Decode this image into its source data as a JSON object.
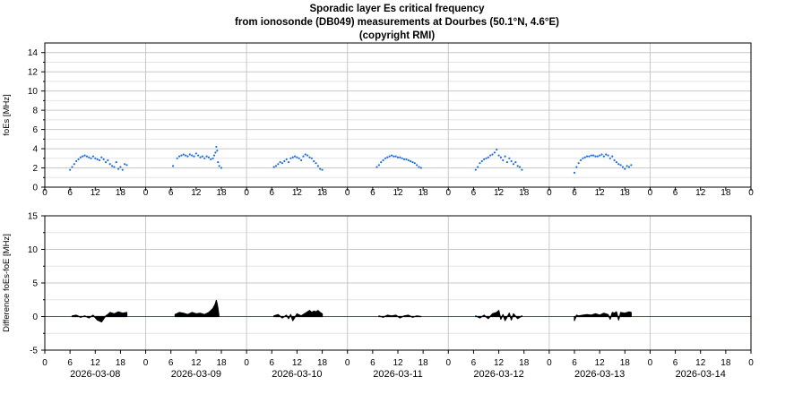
{
  "title_lines": [
    "Sporadic layer Es critical frequency",
    "from ionosonde (DB049) measurements at Dourbes (50.1°N, 4.6°E)",
    "(copyright RMI)"
  ],
  "chart_data": [
    {
      "type": "scatter",
      "ylabel": "foEs [MHz]",
      "ylim": [
        0,
        15
      ],
      "yticks": [
        0,
        2,
        4,
        6,
        8,
        10,
        12,
        14
      ],
      "grid": true,
      "color": "#1f6fdc",
      "days": [
        "2026-03-08",
        "2026-03-09",
        "2026-03-10",
        "2026-03-11",
        "2026-03-12",
        "2026-03-13",
        "2026-03-14"
      ],
      "xtick_hours": [
        0,
        6,
        12,
        18
      ],
      "series": [
        {
          "day": "2026-03-08",
          "hours": [
            6.0,
            6.5,
            7.0,
            7.5,
            8.0,
            8.5,
            9.0,
            9.5,
            10.0,
            10.5,
            11.0,
            11.5,
            12.0,
            12.5,
            13.0,
            13.5,
            14.0,
            14.5,
            15.0,
            15.5,
            16.0,
            16.5,
            17.0,
            17.5,
            18.0,
            18.5,
            19.0,
            19.5
          ],
          "values": [
            1.8,
            2.1,
            2.4,
            2.7,
            2.9,
            3.1,
            3.2,
            3.3,
            3.2,
            3.1,
            3.0,
            3.2,
            3.0,
            2.9,
            2.8,
            3.1,
            2.9,
            2.6,
            2.8,
            2.4,
            2.2,
            2.1,
            2.6,
            1.9,
            2.1,
            1.8,
            2.4,
            2.3
          ]
        },
        {
          "day": "2026-03-09",
          "hours": [
            6.5,
            7.5,
            8.0,
            8.5,
            9.0,
            9.5,
            10.0,
            10.5,
            11.0,
            11.5,
            12.0,
            12.5,
            13.0,
            13.5,
            14.0,
            14.5,
            15.0,
            15.5,
            16.0,
            16.3,
            16.6,
            16.8,
            17.0,
            17.2,
            17.5,
            18.0
          ],
          "values": [
            2.2,
            3.0,
            3.2,
            3.3,
            3.4,
            3.3,
            3.2,
            3.4,
            3.3,
            3.2,
            3.5,
            3.3,
            3.1,
            3.2,
            3.0,
            3.2,
            3.1,
            2.9,
            3.0,
            3.3,
            3.6,
            4.2,
            3.8,
            2.6,
            2.2,
            2.0
          ]
        },
        {
          "day": "2026-03-10",
          "hours": [
            6.5,
            7.0,
            7.5,
            8.0,
            8.5,
            9.0,
            9.5,
            10.0,
            10.5,
            11.0,
            11.5,
            12.0,
            12.5,
            13.0,
            13.5,
            14.0,
            14.5,
            15.0,
            15.5,
            16.0,
            16.5,
            17.0,
            17.5,
            18.0
          ],
          "values": [
            2.1,
            2.2,
            2.4,
            2.6,
            2.5,
            2.7,
            2.9,
            2.6,
            3.0,
            3.1,
            3.2,
            3.1,
            3.0,
            2.8,
            3.2,
            3.4,
            3.3,
            3.1,
            3.0,
            2.7,
            2.5,
            2.2,
            1.9,
            1.8
          ]
        },
        {
          "day": "2026-03-11",
          "hours": [
            7.0,
            7.5,
            8.0,
            8.5,
            9.0,
            9.5,
            10.0,
            10.5,
            11.0,
            11.5,
            12.0,
            12.5,
            13.0,
            13.5,
            14.0,
            14.5,
            15.0,
            15.5,
            16.0,
            16.5,
            17.0,
            17.5
          ],
          "values": [
            2.1,
            2.3,
            2.6,
            2.8,
            3.0,
            3.1,
            3.2,
            3.3,
            3.2,
            3.2,
            3.1,
            3.1,
            3.0,
            2.9,
            2.9,
            2.8,
            2.7,
            2.6,
            2.5,
            2.3,
            2.1,
            2.0
          ]
        },
        {
          "day": "2026-03-12",
          "hours": [
            6.5,
            7.0,
            7.5,
            8.0,
            8.5,
            9.0,
            9.5,
            10.0,
            10.5,
            11.0,
            11.5,
            12.0,
            12.5,
            13.0,
            13.5,
            14.0,
            14.5,
            15.0,
            15.5,
            16.0,
            16.5,
            17.0,
            17.5
          ],
          "values": [
            1.8,
            2.1,
            2.5,
            2.7,
            2.9,
            3.0,
            3.1,
            3.3,
            3.4,
            3.6,
            3.9,
            3.3,
            3.1,
            2.8,
            3.2,
            2.6,
            3.0,
            2.7,
            2.4,
            2.6,
            2.2,
            2.1,
            1.8
          ]
        },
        {
          "day": "2026-03-13",
          "hours": [
            6.0,
            6.5,
            7.0,
            7.5,
            8.0,
            8.5,
            9.0,
            9.5,
            10.0,
            10.5,
            11.0,
            11.5,
            12.0,
            12.5,
            13.0,
            13.5,
            14.0,
            14.5,
            15.0,
            15.5,
            16.0,
            16.5,
            17.0,
            17.5,
            18.0,
            18.5,
            19.0,
            19.5
          ],
          "values": [
            1.5,
            2.1,
            2.5,
            2.8,
            3.0,
            3.1,
            3.2,
            3.2,
            3.3,
            3.3,
            3.2,
            3.2,
            3.3,
            3.4,
            3.2,
            3.4,
            3.3,
            3.0,
            3.2,
            2.8,
            2.6,
            2.4,
            2.3,
            2.1,
            1.9,
            2.2,
            2.1,
            2.3
          ]
        }
      ]
    },
    {
      "type": "area",
      "ylabel": "Difference foEs-foE [MHz]",
      "ylim": [
        -5,
        15
      ],
      "yticks": [
        -5,
        0,
        5,
        10,
        15
      ],
      "grid": true,
      "color": "#000000",
      "zero_line_color": "#1f5fa8",
      "days": [
        "2026-03-08",
        "2026-03-09",
        "2026-03-10",
        "2026-03-11",
        "2026-03-12",
        "2026-03-13",
        "2026-03-14"
      ],
      "xtick_hours": [
        0,
        6,
        12,
        18
      ],
      "xlabels": [
        "2026-03-08",
        "2026-03-09",
        "2026-03-10",
        "2026-03-11",
        "2026-03-12",
        "2026-03-13",
        "2026-03-14"
      ],
      "series": [
        {
          "day": "2026-03-08",
          "hours": [
            6.5,
            7.5,
            8.5,
            9.5,
            10.5,
            11.5,
            12.5,
            13.5,
            14.5,
            15.0,
            15.5,
            16.5,
            17.5,
            18.5,
            19.5
          ],
          "values": [
            0.1,
            0.2,
            -0.1,
            0.1,
            -0.2,
            0.2,
            -0.5,
            -0.8,
            0.1,
            0.3,
            0.6,
            0.4,
            0.7,
            0.5,
            0.6
          ]
        },
        {
          "day": "2026-03-09",
          "hours": [
            7.0,
            8.0,
            9.0,
            10.0,
            11.0,
            12.0,
            13.0,
            14.0,
            15.0,
            15.5,
            16.0,
            16.5,
            16.8,
            17.0,
            17.2,
            17.4
          ],
          "values": [
            0.3,
            0.6,
            0.5,
            0.3,
            0.6,
            0.4,
            0.5,
            0.3,
            0.6,
            0.9,
            1.2,
            1.8,
            2.4,
            1.9,
            1.2,
            0.2
          ]
        },
        {
          "day": "2026-03-10",
          "hours": [
            6.5,
            7.5,
            8.5,
            9.5,
            10.0,
            10.5,
            11.0,
            12.0,
            13.0,
            14.0,
            14.5,
            15.0,
            15.5,
            16.0,
            16.5,
            17.0,
            17.5,
            18.0
          ],
          "values": [
            0.1,
            0.3,
            -0.2,
            0.2,
            -0.3,
            0.3,
            -0.6,
            0.4,
            0.1,
            0.5,
            0.7,
            0.9,
            0.6,
            0.8,
            0.7,
            0.9,
            0.6,
            0.4
          ]
        },
        {
          "day": "2026-03-11",
          "hours": [
            7.5,
            8.5,
            9.5,
            10.5,
            11.5,
            12.5,
            13.5,
            14.5,
            15.5,
            16.5,
            17.5
          ],
          "values": [
            0.1,
            -0.1,
            0.2,
            0.1,
            0.2,
            -0.2,
            0.1,
            0.2,
            -0.1,
            0.1,
            0.0
          ]
        },
        {
          "day": "2026-03-12",
          "hours": [
            6.5,
            7.5,
            8.5,
            9.5,
            10.5,
            11.5,
            12.0,
            12.5,
            13.0,
            13.5,
            14.5,
            15.0,
            15.5,
            16.5,
            17.5
          ],
          "values": [
            0.1,
            -0.2,
            0.2,
            -0.3,
            0.4,
            0.6,
            0.9,
            -0.4,
            0.3,
            -0.6,
            0.5,
            -0.5,
            0.4,
            -0.3,
            0.1
          ]
        },
        {
          "day": "2026-03-13",
          "hours": [
            6.0,
            6.5,
            7.0,
            8.0,
            9.0,
            10.0,
            11.0,
            12.0,
            13.0,
            14.0,
            14.5,
            15.0,
            15.5,
            16.0,
            16.5,
            17.0,
            18.0,
            19.0,
            19.5
          ],
          "values": [
            -0.6,
            0.2,
            0.1,
            0.2,
            0.3,
            0.2,
            0.4,
            0.2,
            0.5,
            0.3,
            -0.4,
            0.6,
            0.5,
            0.7,
            -0.5,
            0.6,
            0.5,
            0.7,
            0.6
          ]
        }
      ]
    }
  ]
}
